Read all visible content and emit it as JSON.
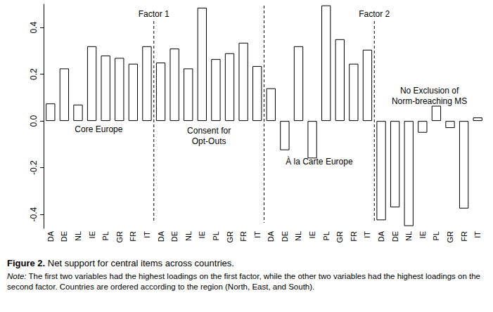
{
  "chart_data": {
    "type": "bar",
    "categories": [
      "DA",
      "DE",
      "NL",
      "IE",
      "PL",
      "GR",
      "FR",
      "IT",
      "DA",
      "DE",
      "NL",
      "IE",
      "PL",
      "GR",
      "FR",
      "IT",
      "DA",
      "DE",
      "NL",
      "IE",
      "PL",
      "GR",
      "FR",
      "IT",
      "DA",
      "DE",
      "NL",
      "IE",
      "PL",
      "GR",
      "FR",
      "IT"
    ],
    "values": [
      0.075,
      0.225,
      0.07,
      0.32,
      0.28,
      0.27,
      0.245,
      0.32,
      0.25,
      0.31,
      0.225,
      0.485,
      0.265,
      0.29,
      0.335,
      0.235,
      0.14,
      -0.125,
      0.32,
      -0.16,
      0.495,
      0.35,
      0.245,
      0.305,
      -0.425,
      -0.37,
      -0.45,
      -0.05,
      0.065,
      -0.03,
      -0.375,
      0.015
    ],
    "color": "#ffffff",
    "ylim": [
      -0.46,
      0.5
    ],
    "yticks": [
      -0.4,
      -0.2,
      {
        "value": 0,
        "label": "0.0"
      },
      0.2,
      0.4
    ],
    "grid": false,
    "annotations": {
      "factors": [
        "Factor 1",
        "Factor 2"
      ],
      "groups": [
        "Core Europe",
        "Consent for\nOpt-Outs",
        "À la Carte Europe",
        "No Exclusion of\nNorm-breaching MS"
      ]
    },
    "caption": {
      "label": "Figure 2.",
      "text": "Net support for central items across countries."
    },
    "note": {
      "label": "Note:",
      "text": "The first two variables had the highest loadings on the first factor, while the other two variables had the highest loadings on the second factor. Countries are ordered according to the region (North, East, and South)."
    }
  }
}
